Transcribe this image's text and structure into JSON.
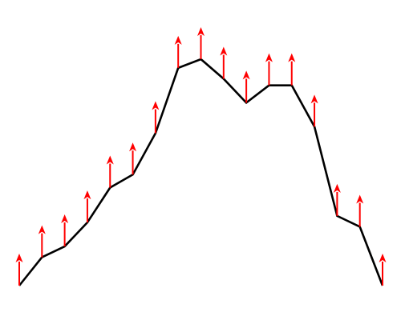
{
  "colors": {
    "background": "#ffffff",
    "profile_line": "#000000",
    "arrow": "#ff0000"
  },
  "chart_data": {
    "type": "line",
    "title": "",
    "xlabel": "",
    "ylabel": "",
    "grid": false,
    "legend": "none",
    "x": [
      0,
      1,
      2,
      3,
      4,
      5,
      6,
      7,
      8,
      9,
      10,
      11,
      12,
      13,
      14,
      15,
      16
    ],
    "series": [
      {
        "values": [
          0.0,
          0.13,
          0.18,
          0.29,
          0.45,
          0.51,
          0.7,
          1.0,
          1.04,
          0.95,
          0.84,
          0.92,
          0.92,
          0.73,
          0.32,
          0.27,
          0.0
        ],
        "arrow_at_vertex": [
          true,
          true,
          true,
          true,
          true,
          true,
          true,
          true,
          true,
          true,
          true,
          true,
          true,
          true,
          true,
          true,
          true
        ],
        "arrow_direction": "up"
      }
    ]
  }
}
